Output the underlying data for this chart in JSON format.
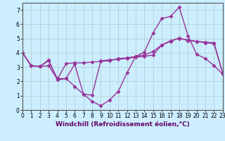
{
  "xlabel": "Windchill (Refroidissement éolien,°C)",
  "xlim": [
    0,
    23
  ],
  "ylim": [
    0,
    7.5
  ],
  "yticks": [
    0,
    1,
    2,
    3,
    4,
    5,
    6,
    7
  ],
  "xticks": [
    0,
    1,
    2,
    3,
    4,
    5,
    6,
    7,
    8,
    9,
    10,
    11,
    12,
    13,
    14,
    15,
    16,
    17,
    18,
    19,
    20,
    21,
    22,
    23
  ],
  "background_color": "#cceeff",
  "grid_color": "#aacccc",
  "line_color": "#993399",
  "series1": [
    4.0,
    3.1,
    3.05,
    3.5,
    2.1,
    2.2,
    3.2,
    1.1,
    0.6,
    0.3,
    0.7,
    1.3,
    2.6,
    3.75,
    4.05,
    5.4,
    6.4,
    6.55,
    7.2,
    5.2,
    3.9,
    3.6,
    3.1,
    2.5
  ],
  "series2": [
    4.0,
    3.1,
    3.05,
    3.1,
    2.15,
    3.25,
    3.3,
    3.3,
    3.35,
    3.4,
    3.45,
    3.6,
    3.65,
    3.75,
    3.85,
    4.1,
    4.55,
    4.8,
    5.05,
    4.85,
    4.8,
    4.75,
    4.7,
    2.55
  ],
  "series3": [
    4.0,
    3.1,
    3.05,
    3.45,
    2.2,
    2.2,
    1.65,
    1.1,
    1.05,
    3.45,
    3.5,
    3.55,
    3.6,
    3.7,
    3.75,
    3.85,
    4.55,
    4.85,
    5.0,
    4.9,
    4.8,
    4.7,
    4.65,
    2.55
  ],
  "marker": "D",
  "markersize": 2.5,
  "linewidth": 1.0,
  "tick_fontsize": 5.5,
  "xlabel_fontsize": 6.5
}
